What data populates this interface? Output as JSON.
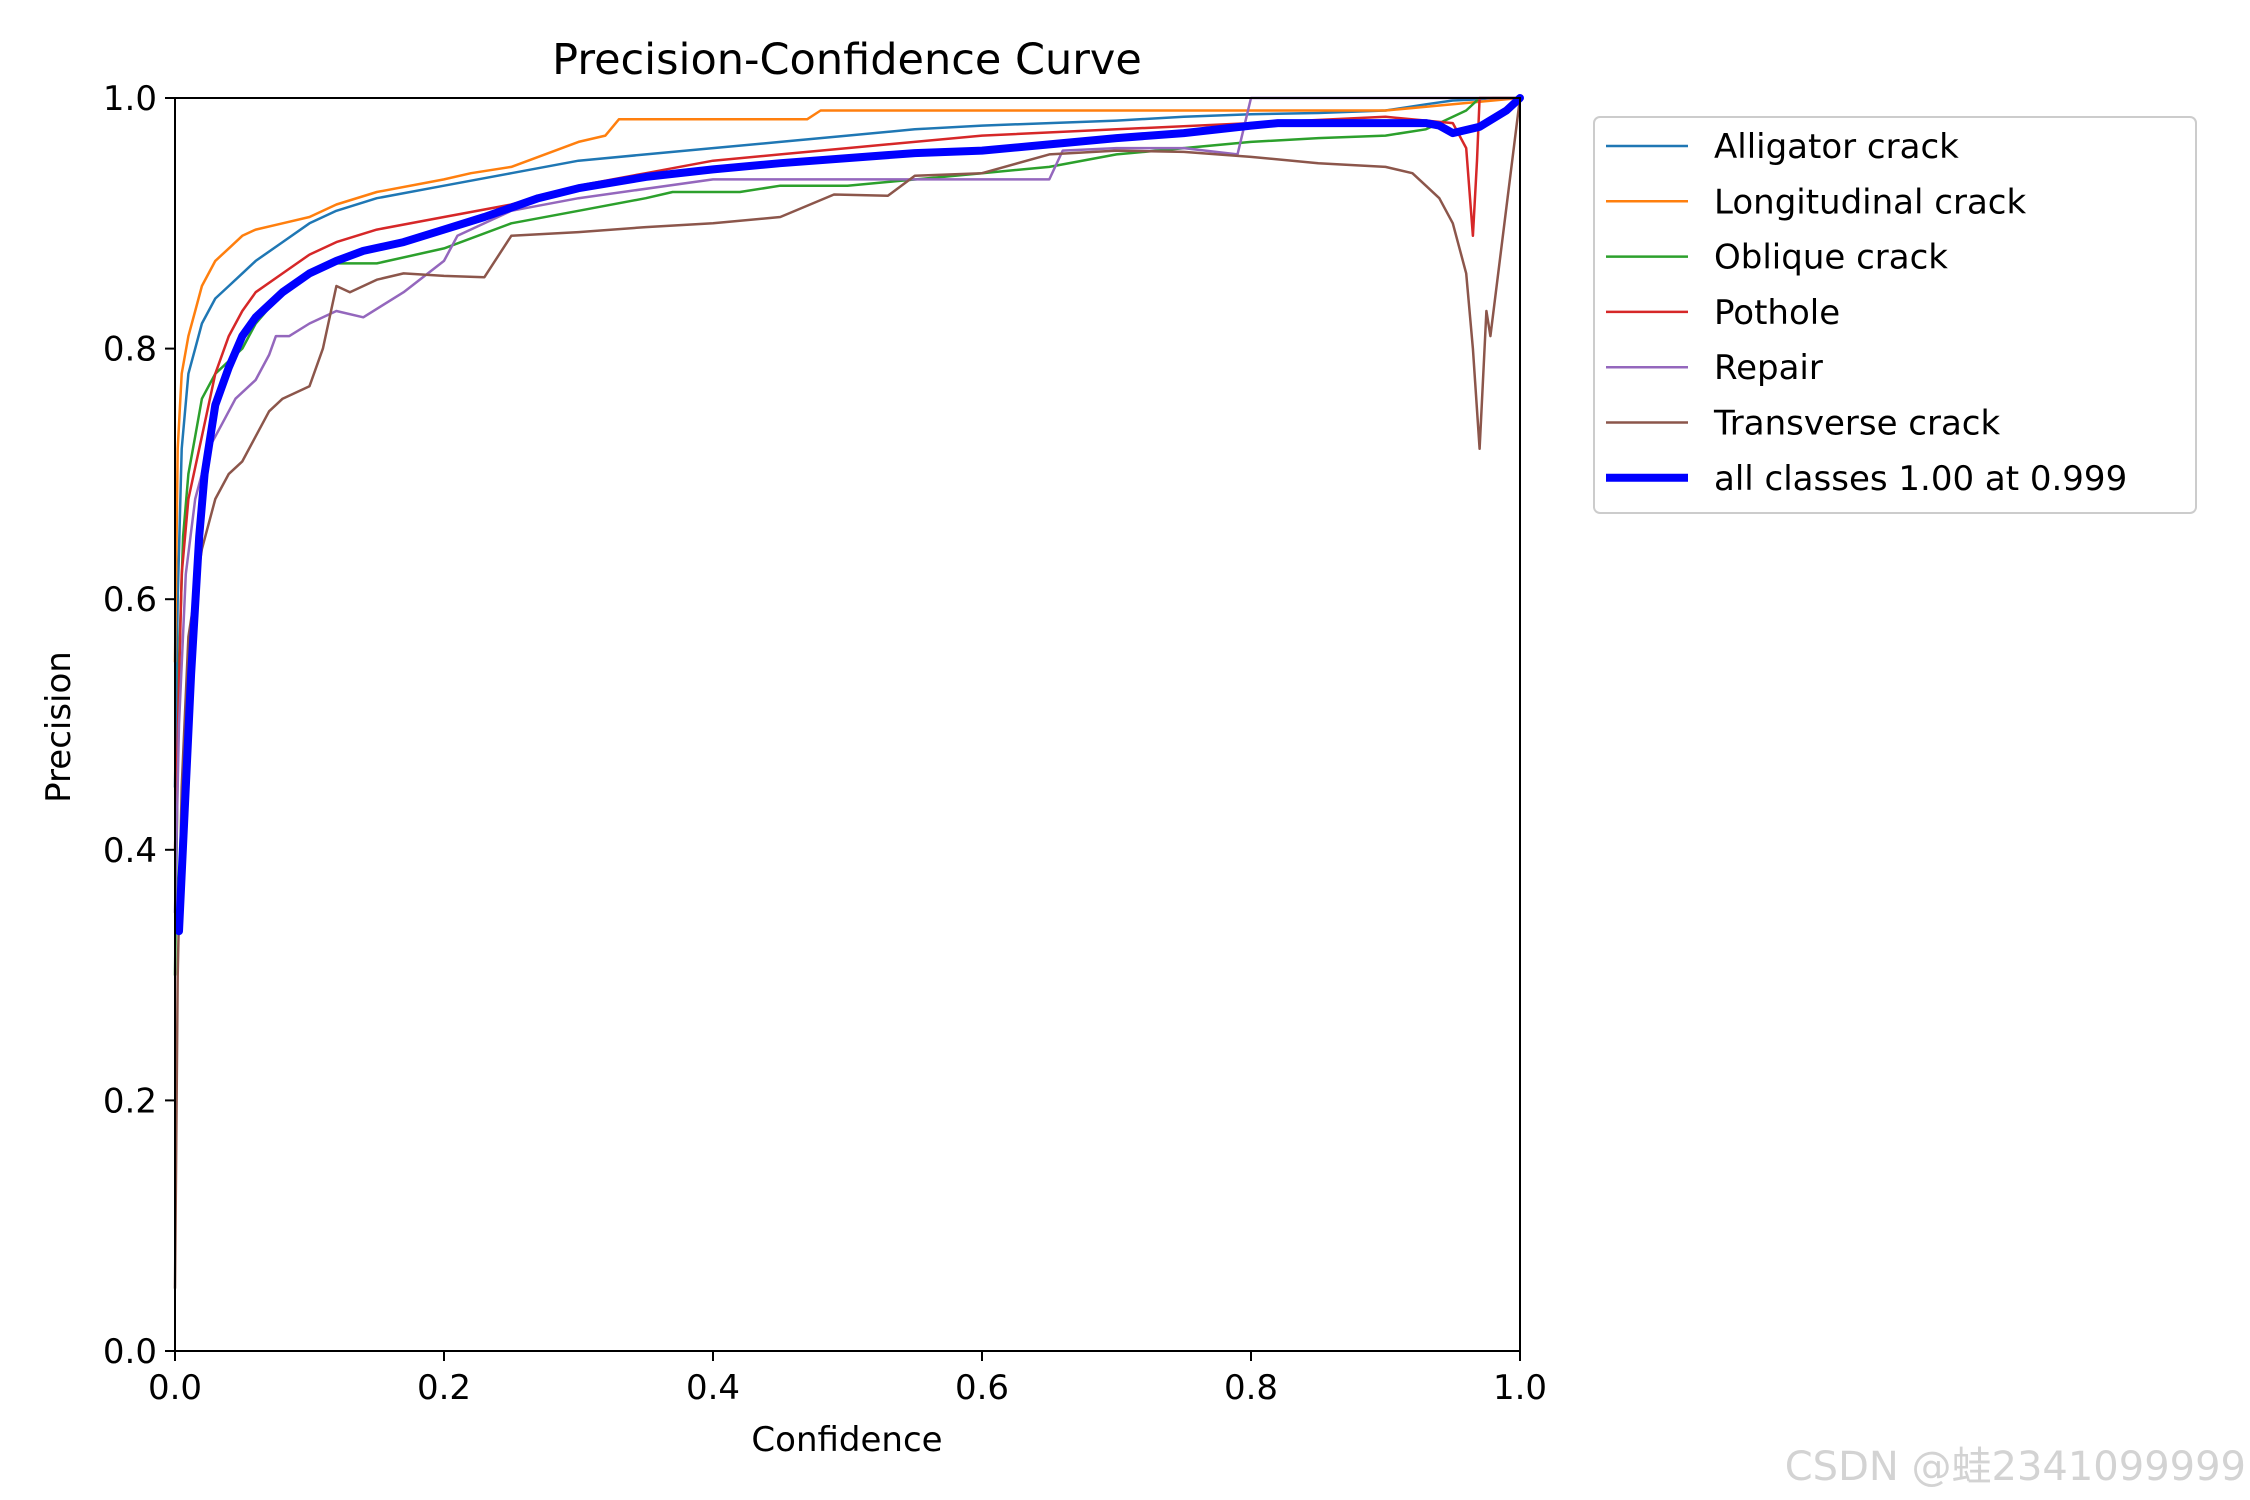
{
  "chart_data": {
    "type": "line",
    "title": "Precision-Confidence Curve",
    "xlabel": "Confidence",
    "ylabel": "Precision",
    "xlim": [
      0,
      1
    ],
    "ylim": [
      0,
      1
    ],
    "xticks": [
      "0.0",
      "0.2",
      "0.4",
      "0.6",
      "0.8",
      "1.0"
    ],
    "yticks": [
      "0.0",
      "0.2",
      "0.4",
      "0.6",
      "0.8",
      "1.0"
    ],
    "grid": false,
    "legend_position": "outside-top-right",
    "series": [
      {
        "name": "Alligator crack",
        "color": "#1f77b4",
        "x": [
          0,
          0.002,
          0.005,
          0.01,
          0.015,
          0.02,
          0.03,
          0.04,
          0.05,
          0.06,
          0.08,
          0.1,
          0.12,
          0.15,
          0.2,
          0.25,
          0.3,
          0.35,
          0.4,
          0.45,
          0.5,
          0.55,
          0.6,
          0.65,
          0.7,
          0.75,
          0.8,
          0.85,
          0.9,
          0.93,
          0.95,
          0.97,
          0.98,
          1.0
        ],
        "y": [
          0.45,
          0.6,
          0.72,
          0.78,
          0.8,
          0.82,
          0.84,
          0.85,
          0.86,
          0.87,
          0.885,
          0.9,
          0.91,
          0.92,
          0.93,
          0.94,
          0.95,
          0.955,
          0.96,
          0.965,
          0.97,
          0.975,
          0.978,
          0.98,
          0.982,
          0.985,
          0.987,
          0.988,
          0.99,
          0.995,
          0.998,
          0.999,
          1.0,
          1.0
        ]
      },
      {
        "name": "Longitudinal crack",
        "color": "#ff7f0e",
        "x": [
          0,
          0.002,
          0.005,
          0.01,
          0.015,
          0.02,
          0.03,
          0.04,
          0.05,
          0.06,
          0.08,
          0.1,
          0.12,
          0.15,
          0.2,
          0.22,
          0.25,
          0.3,
          0.32,
          0.33,
          0.47,
          0.48,
          0.6,
          0.8,
          0.9,
          0.95,
          1.0
        ],
        "y": [
          0.55,
          0.72,
          0.78,
          0.81,
          0.83,
          0.85,
          0.87,
          0.88,
          0.89,
          0.895,
          0.9,
          0.905,
          0.915,
          0.925,
          0.935,
          0.94,
          0.945,
          0.965,
          0.97,
          0.983,
          0.983,
          0.99,
          0.99,
          0.99,
          0.99,
          0.995,
          1.0
        ]
      },
      {
        "name": "Oblique crack",
        "color": "#2ca02c",
        "x": [
          0,
          0.003,
          0.006,
          0.01,
          0.015,
          0.02,
          0.03,
          0.05,
          0.06,
          0.08,
          0.1,
          0.12,
          0.15,
          0.2,
          0.25,
          0.3,
          0.35,
          0.37,
          0.42,
          0.45,
          0.5,
          0.6,
          0.65,
          0.7,
          0.8,
          0.85,
          0.9,
          0.93,
          0.94,
          0.96,
          0.97,
          1.0
        ],
        "y": [
          0.3,
          0.55,
          0.65,
          0.7,
          0.73,
          0.76,
          0.78,
          0.8,
          0.82,
          0.845,
          0.86,
          0.868,
          0.868,
          0.88,
          0.9,
          0.91,
          0.92,
          0.925,
          0.925,
          0.93,
          0.93,
          0.94,
          0.945,
          0.955,
          0.965,
          0.968,
          0.97,
          0.975,
          0.98,
          0.99,
          1.0,
          1.0
        ]
      },
      {
        "name": "Pothole",
        "color": "#d62728",
        "x": [
          0,
          0.005,
          0.01,
          0.02,
          0.03,
          0.04,
          0.05,
          0.06,
          0.08,
          0.1,
          0.12,
          0.15,
          0.2,
          0.25,
          0.3,
          0.35,
          0.4,
          0.45,
          0.5,
          0.6,
          0.7,
          0.8,
          0.9,
          0.95,
          0.96,
          0.965,
          0.968,
          0.97,
          1.0
        ],
        "y": [
          0.4,
          0.62,
          0.68,
          0.73,
          0.78,
          0.81,
          0.83,
          0.845,
          0.86,
          0.875,
          0.885,
          0.895,
          0.905,
          0.915,
          0.93,
          0.94,
          0.95,
          0.955,
          0.96,
          0.97,
          0.975,
          0.98,
          0.985,
          0.98,
          0.96,
          0.89,
          0.95,
          1.0,
          1.0
        ]
      },
      {
        "name": "Repair",
        "color": "#9467bd",
        "x": [
          0,
          0.003,
          0.008,
          0.015,
          0.025,
          0.035,
          0.045,
          0.06,
          0.07,
          0.075,
          0.085,
          0.1,
          0.12,
          0.14,
          0.17,
          0.2,
          0.21,
          0.25,
          0.3,
          0.4,
          0.5,
          0.6,
          0.65,
          0.66,
          0.7,
          0.75,
          0.79,
          0.8,
          1.0
        ],
        "y": [
          0.35,
          0.5,
          0.62,
          0.68,
          0.72,
          0.74,
          0.76,
          0.775,
          0.795,
          0.81,
          0.81,
          0.82,
          0.83,
          0.825,
          0.845,
          0.87,
          0.89,
          0.91,
          0.92,
          0.935,
          0.935,
          0.935,
          0.935,
          0.958,
          0.96,
          0.96,
          0.955,
          1.0,
          1.0
        ]
      },
      {
        "name": "Transverse crack",
        "color": "#8c564b",
        "x": [
          0,
          0.002,
          0.005,
          0.01,
          0.02,
          0.03,
          0.04,
          0.05,
          0.06,
          0.07,
          0.08,
          0.1,
          0.11,
          0.12,
          0.13,
          0.15,
          0.17,
          0.2,
          0.23,
          0.25,
          0.3,
          0.35,
          0.4,
          0.45,
          0.49,
          0.53,
          0.55,
          0.6,
          0.65,
          0.7,
          0.75,
          0.8,
          0.85,
          0.9,
          0.92,
          0.93,
          0.94,
          0.95,
          0.96,
          0.965,
          0.97,
          0.975,
          0.978,
          1.0
        ],
        "y": [
          0.05,
          0.3,
          0.45,
          0.57,
          0.64,
          0.68,
          0.7,
          0.71,
          0.73,
          0.75,
          0.76,
          0.77,
          0.8,
          0.85,
          0.845,
          0.855,
          0.86,
          0.858,
          0.857,
          0.89,
          0.893,
          0.897,
          0.9,
          0.905,
          0.923,
          0.922,
          0.938,
          0.94,
          0.955,
          0.958,
          0.957,
          0.953,
          0.948,
          0.945,
          0.94,
          0.93,
          0.92,
          0.9,
          0.86,
          0.8,
          0.72,
          0.83,
          0.81,
          1.0
        ]
      },
      {
        "name": "all classes 1.00 at 0.999",
        "color": "#0000ff",
        "bold": true,
        "x": [
          0.003,
          0.008,
          0.012,
          0.018,
          0.022,
          0.03,
          0.04,
          0.05,
          0.06,
          0.08,
          0.1,
          0.12,
          0.14,
          0.17,
          0.2,
          0.23,
          0.27,
          0.3,
          0.35,
          0.4,
          0.45,
          0.5,
          0.55,
          0.6,
          0.65,
          0.7,
          0.75,
          0.8,
          0.82,
          0.85,
          0.9,
          0.93,
          0.94,
          0.95,
          0.97,
          0.99,
          1.0
        ],
        "y": [
          0.335,
          0.45,
          0.54,
          0.65,
          0.7,
          0.755,
          0.785,
          0.81,
          0.825,
          0.845,
          0.86,
          0.87,
          0.878,
          0.885,
          0.895,
          0.905,
          0.92,
          0.928,
          0.937,
          0.943,
          0.948,
          0.952,
          0.956,
          0.958,
          0.963,
          0.968,
          0.972,
          0.978,
          0.98,
          0.98,
          0.98,
          0.98,
          0.978,
          0.972,
          0.977,
          0.99,
          1.0
        ]
      }
    ]
  },
  "watermark": "CSDN @蛙2341099999"
}
